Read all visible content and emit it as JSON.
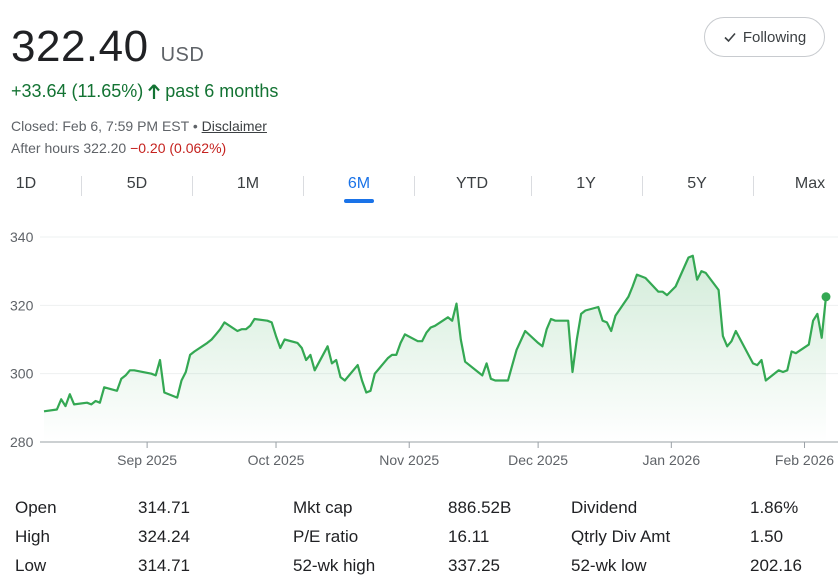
{
  "quote": {
    "price": "322.40",
    "currency": "USD",
    "change": "+33.64 (11.65%)",
    "period": "past 6 months",
    "closed_text": "Closed: Feb 6, 7:59 PM EST •",
    "disclaimer": "Disclaimer",
    "after_hours_label": "After hours 322.20",
    "after_hours_change": "−0.20 (0.062%)"
  },
  "follow_button": {
    "label": "Following",
    "icon": "check-icon"
  },
  "ranges": [
    "1D",
    "5D",
    "1M",
    "6M",
    "YTD",
    "1Y",
    "5Y",
    "Max"
  ],
  "selected_range": "6M",
  "colors": {
    "positive": "#137333",
    "negative": "#c5221f",
    "accent": "#1a73e8",
    "line": "#34a853"
  },
  "chart_data": {
    "type": "area",
    "x_ticks": [
      "Sep 2025",
      "Oct 2025",
      "Nov 2025",
      "Dec 2025",
      "Jan 2026",
      "Feb 2026"
    ],
    "y_ticks": [
      "340",
      "320",
      "300",
      "280"
    ],
    "ylim": [
      280,
      340
    ],
    "xlim": [
      "2025-08-08",
      "2026-02-06"
    ],
    "grid": true,
    "series": [
      {
        "x": [
          "2025-08-08",
          "2025-08-11",
          "2025-08-12",
          "2025-08-13",
          "2025-08-14",
          "2025-08-15",
          "2025-08-18",
          "2025-08-19",
          "2025-08-20",
          "2025-08-21",
          "2025-08-22",
          "2025-08-25",
          "2025-08-26",
          "2025-08-27",
          "2025-08-28",
          "2025-08-29",
          "2025-09-02",
          "2025-09-03",
          "2025-09-04",
          "2025-09-05",
          "2025-09-08",
          "2025-09-09",
          "2025-09-10",
          "2025-09-11",
          "2025-09-12",
          "2025-09-15",
          "2025-09-16",
          "2025-09-17",
          "2025-09-18",
          "2025-09-19",
          "2025-09-22",
          "2025-09-23",
          "2025-09-24",
          "2025-09-25",
          "2025-09-26",
          "2025-09-29",
          "2025-09-30",
          "2025-10-01",
          "2025-10-02",
          "2025-10-03",
          "2025-10-06",
          "2025-10-07",
          "2025-10-08",
          "2025-10-09",
          "2025-10-10",
          "2025-10-13",
          "2025-10-14",
          "2025-10-15",
          "2025-10-16",
          "2025-10-17",
          "2025-10-20",
          "2025-10-21",
          "2025-10-22",
          "2025-10-23",
          "2025-10-24",
          "2025-10-27",
          "2025-10-28",
          "2025-10-29",
          "2025-10-30",
          "2025-10-31",
          "2025-11-03",
          "2025-11-04",
          "2025-11-05",
          "2025-11-06",
          "2025-11-07",
          "2025-11-10",
          "2025-11-11",
          "2025-11-12",
          "2025-11-13",
          "2025-11-14",
          "2025-11-17",
          "2025-11-18",
          "2025-11-19",
          "2025-11-20",
          "2025-11-21",
          "2025-11-24",
          "2025-11-25",
          "2025-11-26",
          "2025-11-28",
          "2025-12-01",
          "2025-12-02",
          "2025-12-03",
          "2025-12-04",
          "2025-12-05",
          "2025-12-08",
          "2025-12-09",
          "2025-12-10",
          "2025-12-11",
          "2025-12-12",
          "2025-12-15",
          "2025-12-16",
          "2025-12-17",
          "2025-12-18",
          "2025-12-19",
          "2025-12-22",
          "2025-12-23",
          "2025-12-24",
          "2025-12-26",
          "2025-12-29",
          "2025-12-30",
          "2025-12-31",
          "2026-01-02",
          "2026-01-05",
          "2026-01-06",
          "2026-01-07",
          "2026-01-08",
          "2026-01-09",
          "2026-01-12",
          "2026-01-13",
          "2026-01-14",
          "2026-01-15",
          "2026-01-16",
          "2026-01-20",
          "2026-01-21",
          "2026-01-22",
          "2026-01-23",
          "2026-01-26",
          "2026-01-27",
          "2026-01-28",
          "2026-01-29",
          "2026-01-30",
          "2026-02-02",
          "2026-02-03",
          "2026-02-04",
          "2026-02-05",
          "2026-02-06"
        ],
        "y": [
          289,
          289.5,
          292.5,
          290.5,
          294,
          291,
          291.5,
          291,
          292,
          291.5,
          296,
          295,
          298.5,
          299.5,
          301,
          301,
          300,
          299.5,
          304,
          294.5,
          293,
          298,
          300.5,
          305.5,
          306.5,
          309,
          310,
          311.5,
          313,
          315,
          312.5,
          313,
          313,
          314,
          316,
          315.5,
          315,
          311,
          307.5,
          310,
          309,
          307.5,
          304,
          305.5,
          301,
          308,
          303,
          304,
          299,
          298,
          302.5,
          298,
          294.5,
          295,
          300,
          304.5,
          305.5,
          305.5,
          309,
          311.5,
          309.5,
          309.5,
          312,
          313.5,
          314,
          316.5,
          315.5,
          320.5,
          310,
          303.5,
          300.5,
          299.5,
          303,
          298.5,
          298,
          298,
          302.5,
          307,
          312.5,
          309,
          308,
          313,
          316,
          315.5,
          315.5,
          300.5,
          310,
          317.5,
          318.5,
          319.5,
          315.5,
          315,
          312.5,
          317,
          322.5,
          325.5,
          329,
          328,
          324,
          324,
          323,
          325.5,
          334,
          334.5,
          327.5,
          330,
          329.5,
          324.5,
          311,
          308,
          309.5,
          312.5,
          303,
          302.5,
          304,
          298,
          301,
          300.5,
          301,
          306.5,
          306,
          308.5,
          315.5,
          317.5,
          310.5,
          322.5
        ]
      }
    ]
  },
  "stats": [
    [
      {
        "label": "Open",
        "value": "314.71"
      },
      {
        "label": "High",
        "value": "324.24"
      },
      {
        "label": "Low",
        "value": "314.71"
      }
    ],
    [
      {
        "label": "Mkt cap",
        "value": "886.52B"
      },
      {
        "label": "P/E ratio",
        "value": "16.11"
      },
      {
        "label": "52-wk high",
        "value": "337.25"
      }
    ],
    [
      {
        "label": "Dividend",
        "value": "1.86%"
      },
      {
        "label": "Qtrly Div Amt",
        "value": "1.50"
      },
      {
        "label": "52-wk low",
        "value": "202.16"
      }
    ]
  ]
}
